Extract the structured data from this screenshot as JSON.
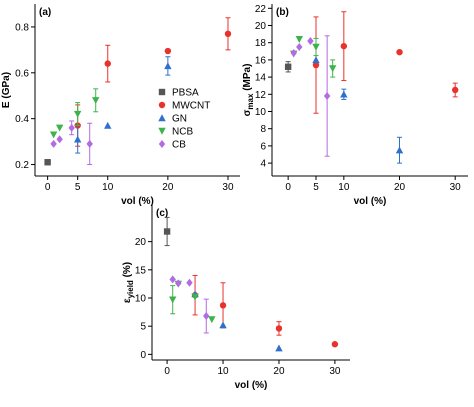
{
  "chart_data": [
    {
      "type": "scatter",
      "panel_label": "(a)",
      "xlabel": "vol (%)",
      "ylabel": [
        "E (GPa)"
      ],
      "xlim": [
        -2.1,
        32
      ],
      "ylim": [
        0.15,
        0.9
      ],
      "xticks": [
        0,
        5,
        10,
        20,
        30
      ],
      "yticks": [
        0.2,
        0.4,
        0.6,
        0.8
      ],
      "legend": "right",
      "series": [
        {
          "name": "PBSA",
          "color": "#555555",
          "marker": "square",
          "x": [
            0
          ],
          "values": [
            0.21
          ],
          "errors": [
            null
          ]
        },
        {
          "name": "MWCNT",
          "color": "#e8322d",
          "marker": "circle",
          "x": [
            5,
            10,
            20,
            30
          ],
          "values": [
            0.37,
            0.64,
            0.695,
            0.77
          ],
          "errors": [
            0.09,
            0.08,
            null,
            0.07
          ]
        },
        {
          "name": "GN",
          "color": "#2f6fce",
          "marker": "triangle-up",
          "x": [
            5,
            10,
            20
          ],
          "values": [
            0.31,
            0.37,
            0.63
          ],
          "errors": [
            0.06,
            null,
            0.04
          ]
        },
        {
          "name": "NCB",
          "color": "#3cb44b",
          "marker": "triangle-down",
          "x": [
            1,
            2,
            5,
            8
          ],
          "values": [
            0.33,
            0.36,
            0.42,
            0.48
          ],
          "errors": [
            null,
            null,
            0.05,
            0.05
          ]
        },
        {
          "name": "CB",
          "color": "#b36ae2",
          "marker": "diamond",
          "x": [
            1,
            2,
            4,
            7
          ],
          "values": [
            0.29,
            0.31,
            0.36,
            0.29
          ],
          "errors": [
            null,
            null,
            0.03,
            0.09
          ]
        }
      ]
    },
    {
      "type": "scatter",
      "panel_label": "(b)",
      "xlabel": "vol (%)",
      "ylabel": [
        "σ",
        "max",
        " (MPa)"
      ],
      "xlim": [
        -2.9,
        32.3
      ],
      "ylim": [
        2.5,
        22.5
      ],
      "xticks": [
        0,
        5,
        10,
        20,
        30
      ],
      "yticks": [
        4,
        6,
        8,
        10,
        12,
        14,
        16,
        18,
        20,
        22
      ],
      "series": [
        {
          "color": "#555555",
          "marker": "square",
          "x": [
            0
          ],
          "values": [
            15.2
          ],
          "errors": [
            0.6
          ]
        },
        {
          "color": "#e8322d",
          "marker": "circle",
          "x": [
            5,
            10,
            20,
            30
          ],
          "values": [
            15.4,
            17.6,
            16.9,
            12.5
          ],
          "errors": [
            5.6,
            4,
            null,
            0.8
          ]
        },
        {
          "color": "#2f6fce",
          "marker": "triangle-up",
          "x": [
            5,
            10,
            20
          ],
          "values": [
            16.0,
            12.0,
            5.5
          ],
          "errors": [
            null,
            0.6,
            1.5
          ]
        },
        {
          "color": "#3cb44b",
          "marker": "triangle-down",
          "x": [
            1,
            2,
            5,
            8
          ],
          "values": [
            16.7,
            18.4,
            17.5,
            15.0
          ],
          "errors": [
            null,
            null,
            1,
            1
          ]
        },
        {
          "color": "#b36ae2",
          "marker": "diamond",
          "x": [
            1,
            2,
            4,
            7
          ],
          "values": [
            16.8,
            17.5,
            18.2,
            11.8
          ],
          "errors": [
            null,
            null,
            null,
            7
          ]
        }
      ]
    },
    {
      "type": "scatter",
      "panel_label": "(c)",
      "xlabel": "vol (%)",
      "ylabel": [
        "ε",
        "yield",
        " (%)"
      ],
      "xlim": [
        -2.7,
        32.7
      ],
      "ylim": [
        -1,
        26.5
      ],
      "xticks": [
        0,
        10,
        20,
        30
      ],
      "yticks": [
        0,
        5,
        10,
        15,
        20
      ],
      "series": [
        {
          "color": "#555555",
          "marker": "square",
          "x": [
            0
          ],
          "values": [
            21.8
          ],
          "errors": [
            2.5
          ]
        },
        {
          "color": "#e8322d",
          "marker": "circle",
          "x": [
            5,
            10,
            20,
            30
          ],
          "values": [
            10.5,
            8.7,
            4.6,
            1.8
          ],
          "errors": [
            3.5,
            4,
            1.2,
            null
          ]
        },
        {
          "color": "#2f6fce",
          "marker": "triangle-up",
          "x": [
            5,
            10,
            20
          ],
          "values": [
            10.7,
            5.2,
            1.1
          ],
          "errors": [
            null,
            null,
            null
          ]
        },
        {
          "color": "#3cb44b",
          "marker": "triangle-down",
          "x": [
            1,
            2,
            5,
            8
          ],
          "values": [
            9.7,
            12.5,
            10.2,
            6.2
          ],
          "errors": [
            2.5,
            null,
            null,
            null
          ]
        },
        {
          "color": "#b36ae2",
          "marker": "diamond",
          "x": [
            1,
            2,
            4,
            7
          ],
          "values": [
            13.3,
            12.6,
            12.7,
            6.8
          ],
          "errors": [
            null,
            null,
            null,
            3
          ]
        }
      ]
    }
  ]
}
